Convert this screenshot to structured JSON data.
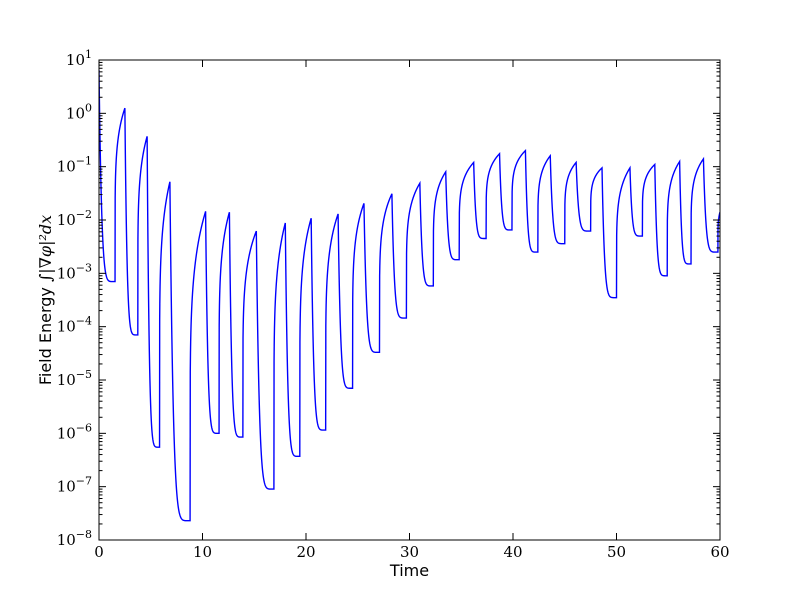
{
  "chart_data": {
    "type": "line",
    "title": "",
    "xlabel": "Time",
    "ylabel": "Field Energy ∫|∇φ|²dx",
    "ylabel_parts": {
      "text": "Field Energy ",
      "math": "∫|∇φ|²dx"
    },
    "xlim": [
      0,
      60
    ],
    "ylim": [
      1e-08,
      10
    ],
    "yscale": "log",
    "grid": false,
    "x_ticks": [
      0,
      10,
      20,
      30,
      40,
      50,
      60
    ],
    "x_tick_labels": [
      "0",
      "10",
      "20",
      "30",
      "40",
      "50",
      "60"
    ],
    "y_tick_exponents": [
      -8,
      -7,
      -6,
      -5,
      -4,
      -3,
      -2,
      -1,
      0,
      1
    ],
    "y_tick_base": "10",
    "series": [
      {
        "color": "#0000ff",
        "peaks": [
          {
            "t": 0.0,
            "v": 6.5
          },
          {
            "t": 2.5,
            "v": 1.25
          },
          {
            "t": 4.65,
            "v": 0.37
          },
          {
            "t": 6.85,
            "v": 0.052
          },
          {
            "t": 10.3,
            "v": 0.0145
          },
          {
            "t": 12.6,
            "v": 0.014
          },
          {
            "t": 15.2,
            "v": 0.0062
          },
          {
            "t": 18.0,
            "v": 0.0088
          },
          {
            "t": 20.5,
            "v": 0.0108
          },
          {
            "t": 23.1,
            "v": 0.013
          },
          {
            "t": 25.6,
            "v": 0.0205
          },
          {
            "t": 28.3,
            "v": 0.031
          },
          {
            "t": 31.0,
            "v": 0.049
          },
          {
            "t": 33.5,
            "v": 0.08
          },
          {
            "t": 36.2,
            "v": 0.12
          },
          {
            "t": 38.7,
            "v": 0.175
          },
          {
            "t": 41.2,
            "v": 0.2
          },
          {
            "t": 43.6,
            "v": 0.16
          },
          {
            "t": 46.1,
            "v": 0.12
          },
          {
            "t": 48.6,
            "v": 0.095
          },
          {
            "t": 51.3,
            "v": 0.095
          },
          {
            "t": 53.7,
            "v": 0.11
          },
          {
            "t": 56.1,
            "v": 0.125
          },
          {
            "t": 58.4,
            "v": 0.14
          },
          {
            "t": 60.0,
            "v": 0.014
          }
        ],
        "troughs": [
          {
            "t": 1.55,
            "v": 0.0007
          },
          {
            "t": 3.75,
            "v": 7e-05
          },
          {
            "t": 5.85,
            "v": 5.5e-07
          },
          {
            "t": 8.8,
            "v": 2.3e-08
          },
          {
            "t": 11.6,
            "v": 1e-06
          },
          {
            "t": 13.9,
            "v": 8.5e-07
          },
          {
            "t": 16.9,
            "v": 9e-08
          },
          {
            "t": 19.4,
            "v": 3.7e-07
          },
          {
            "t": 21.9,
            "v": 1.15e-06
          },
          {
            "t": 24.5,
            "v": 7e-06
          },
          {
            "t": 27.1,
            "v": 3.3e-05
          },
          {
            "t": 29.7,
            "v": 0.000145
          },
          {
            "t": 32.3,
            "v": 0.00058
          },
          {
            "t": 34.8,
            "v": 0.0018
          },
          {
            "t": 37.4,
            "v": 0.0045
          },
          {
            "t": 39.9,
            "v": 0.0065
          },
          {
            "t": 42.4,
            "v": 0.0025
          },
          {
            "t": 45.0,
            "v": 0.0036
          },
          {
            "t": 47.5,
            "v": 0.0062
          },
          {
            "t": 50.0,
            "v": 0.00035
          },
          {
            "t": 52.5,
            "v": 0.005
          },
          {
            "t": 54.9,
            "v": 0.0009
          },
          {
            "t": 57.2,
            "v": 0.0015
          },
          {
            "t": 59.8,
            "v": 0.0025
          }
        ]
      }
    ]
  }
}
